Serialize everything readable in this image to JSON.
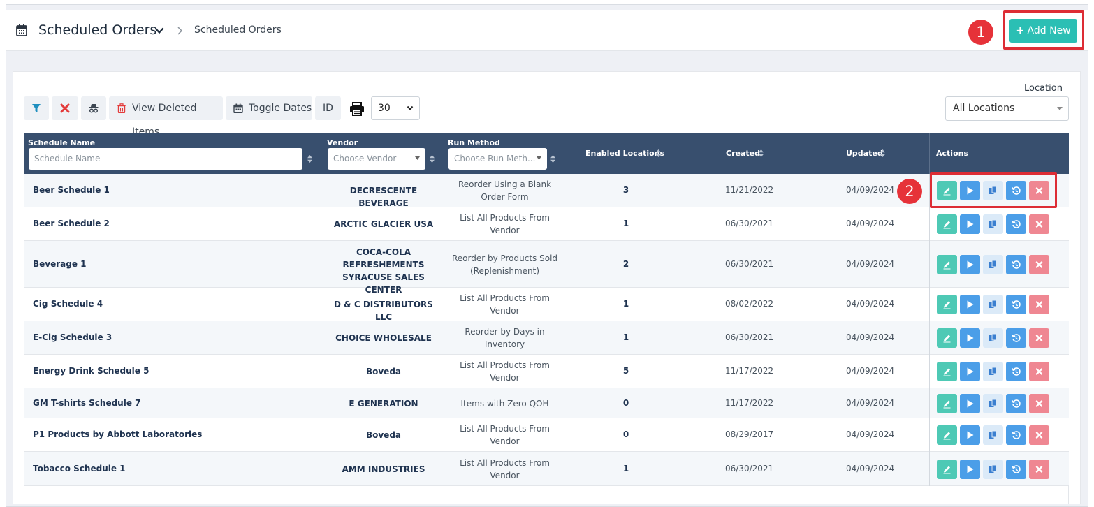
{
  "header": {
    "title": "Scheduled Orders",
    "breadcrumb": "Scheduled Orders",
    "add_button_label": "Add New",
    "callout_1": "1",
    "callout_2": "2"
  },
  "toolbar": {
    "view_deleted_label": "View Deleted Items",
    "toggle_dates_label": "Toggle Dates",
    "id_label": "ID",
    "per_page_value": "30"
  },
  "location": {
    "label": "Location",
    "value": "All Locations"
  },
  "table": {
    "columns": {
      "schedule_name": "Schedule Name",
      "vendor": "Vendor",
      "run_method": "Run Method",
      "enabled_locations": "Enabled Locations",
      "created": "Created",
      "updated": "Updated",
      "actions": "Actions"
    },
    "filters": {
      "schedule_name_placeholder": "Schedule Name",
      "vendor_placeholder": "Choose Vendor",
      "run_method_placeholder": "Choose Run Meth..."
    },
    "rows": [
      {
        "name": "Beer Schedule 1",
        "vendor": [
          "DECRESCENTE BEVERAGE"
        ],
        "method": [
          "Reorder Using a Blank",
          "Order Form"
        ],
        "enabled": "3",
        "created": "11/21/2022",
        "updated": "04/09/2024"
      },
      {
        "name": "Beer Schedule 2",
        "vendor": [
          "ARCTIC GLACIER USA"
        ],
        "method": [
          "List All Products From",
          "Vendor"
        ],
        "enabled": "1",
        "created": "06/30/2021",
        "updated": "04/09/2024"
      },
      {
        "name": "Beverage 1",
        "vendor": [
          "COCA-COLA",
          "REFRESHEMENTS",
          "SYRACUSE SALES CENTER"
        ],
        "method": [
          "Reorder by Products Sold",
          "(Replenishment)"
        ],
        "enabled": "2",
        "created": "06/30/2021",
        "updated": "04/09/2024"
      },
      {
        "name": "Cig Schedule 4",
        "vendor": [
          "D & C DISTRIBUTORS LLC"
        ],
        "method": [
          "List All Products From",
          "Vendor"
        ],
        "enabled": "1",
        "created": "08/02/2022",
        "updated": "04/09/2024"
      },
      {
        "name": "E-Cig Schedule 3",
        "vendor": [
          "CHOICE WHOLESALE"
        ],
        "method": [
          "Reorder by Days in",
          "Inventory"
        ],
        "enabled": "1",
        "created": "06/30/2021",
        "updated": "04/09/2024"
      },
      {
        "name": "Energy Drink Schedule 5",
        "vendor": [
          "Boveda"
        ],
        "method": [
          "List All Products From",
          "Vendor"
        ],
        "enabled": "5",
        "created": "11/17/2022",
        "updated": "04/09/2024"
      },
      {
        "name": "GM T-shirts Schedule 7",
        "vendor": [
          "E GENERATION"
        ],
        "method": [
          "Items with Zero QOH"
        ],
        "enabled": "0",
        "created": "11/17/2022",
        "updated": "04/09/2024"
      },
      {
        "name": "P1 Products by Abbott Laboratories",
        "vendor": [
          "Boveda"
        ],
        "method": [
          "List All Products From",
          "Vendor"
        ],
        "enabled": "0",
        "created": "08/29/2017",
        "updated": "04/09/2024"
      },
      {
        "name": "Tobacco Schedule 1",
        "vendor": [
          "AMM INDUSTRIES"
        ],
        "method": [
          "List All Products From",
          "Vendor"
        ],
        "enabled": "1",
        "created": "06/30/2021",
        "updated": "04/09/2024"
      }
    ]
  },
  "icons": {
    "calendar": "calendar-icon",
    "filter": "filter-icon",
    "clear": "clear-filter-icon",
    "spy": "incognito-icon",
    "trash": "trash-icon",
    "print": "print-icon",
    "edit": "pencil-icon",
    "run": "play-icon",
    "copy": "copy-icon",
    "history": "history-icon",
    "delete": "x-icon"
  },
  "colors": {
    "accent": "#2bbfb4",
    "header_bg": "#384f6e",
    "highlight": "#dd2d35",
    "edit": "#4ec9b5",
    "run": "#4b9ee8",
    "delete": "#ef8792"
  }
}
